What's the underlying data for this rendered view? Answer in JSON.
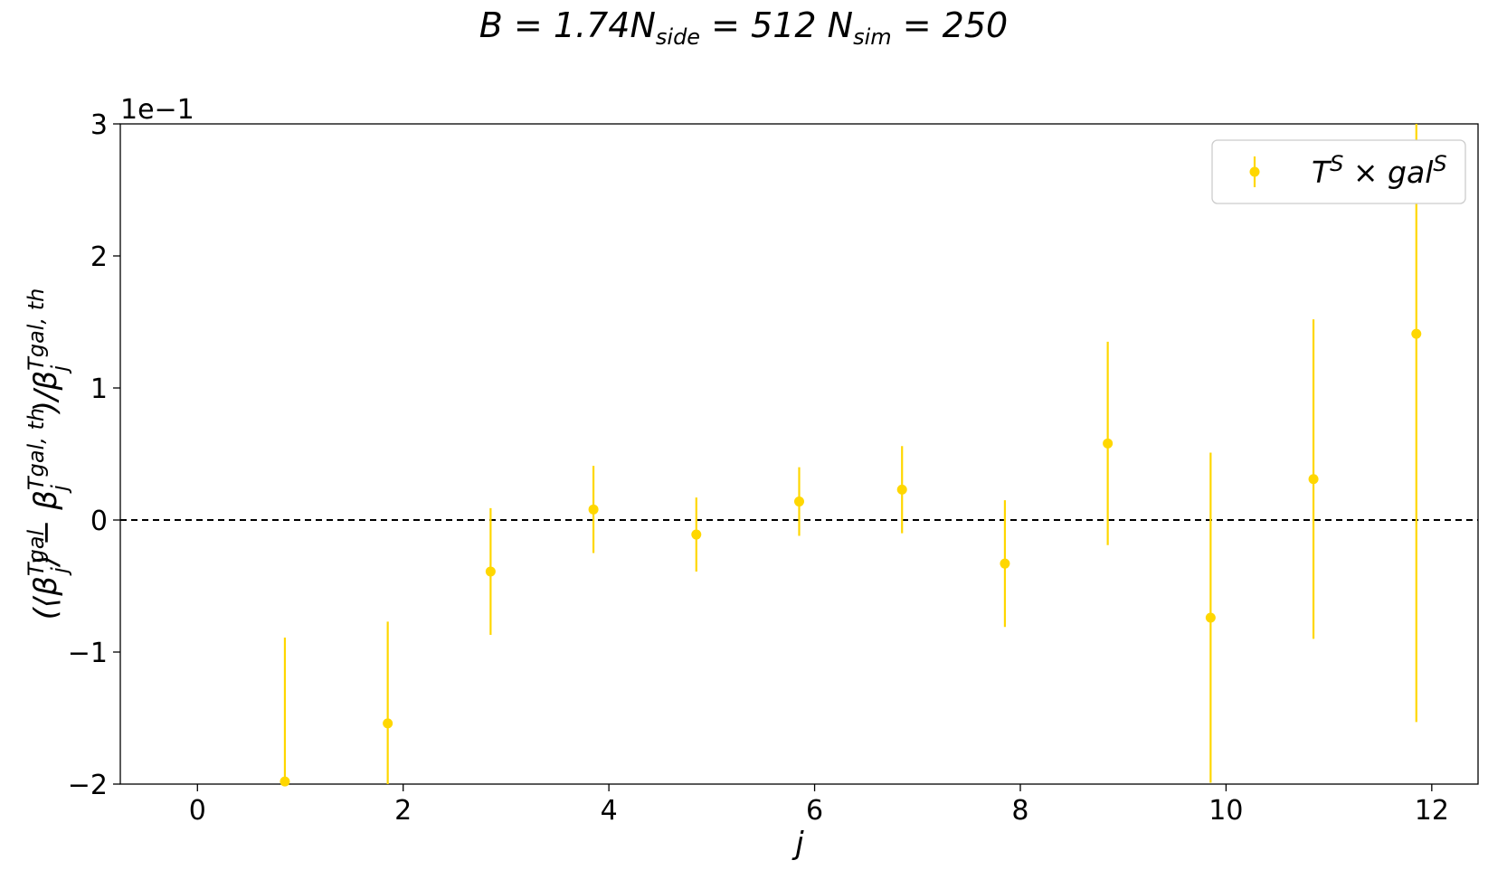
{
  "chart_data": {
    "type": "scatter",
    "title": "B = 1.74N_side = 512 N_sim = 250",
    "xlabel": "j",
    "ylabel": "(⟨β_j^{Tgal}⟩ − β_j^{Tgal, th})/β_j^{Tgal, th}",
    "offset_label": "1e−1",
    "xlim": [
      -0.75,
      12.45
    ],
    "ylim": [
      -2,
      3
    ],
    "x_ticks": [
      0,
      2,
      4,
      6,
      8,
      10,
      12
    ],
    "x_tick_labels": [
      "0",
      "2",
      "4",
      "6",
      "8",
      "10",
      "12"
    ],
    "y_ticks": [
      -2,
      -1,
      0,
      1,
      2,
      3
    ],
    "y_tick_labels": [
      "−2",
      "−1",
      "0",
      "1",
      "2",
      "3"
    ],
    "reference_line": {
      "y": 0,
      "style": "dashed",
      "color": "#000000"
    },
    "grid": false,
    "legend_position": "upper-right",
    "series": [
      {
        "name": "T^S × gal^S",
        "color": "#FFD700",
        "points": [
          {
            "x": 0.85,
            "y": -1.98,
            "yerr": 1.09
          },
          {
            "x": 1.85,
            "y": -1.54,
            "yerr": 0.77
          },
          {
            "x": 2.85,
            "y": -0.39,
            "yerr": 0.48
          },
          {
            "x": 3.85,
            "y": 0.08,
            "yerr": 0.33
          },
          {
            "x": 4.85,
            "y": -0.11,
            "yerr": 0.28
          },
          {
            "x": 5.85,
            "y": 0.14,
            "yerr": 0.26
          },
          {
            "x": 6.85,
            "y": 0.23,
            "yerr": 0.33
          },
          {
            "x": 7.85,
            "y": -0.33,
            "yerr": 0.48
          },
          {
            "x": 8.85,
            "y": 0.58,
            "yerr": 0.77
          },
          {
            "x": 9.85,
            "y": -0.74,
            "yerr": 1.25
          },
          {
            "x": 10.85,
            "y": 0.31,
            "yerr": 1.21
          },
          {
            "x": 11.85,
            "y": 1.41,
            "yerr": 2.94
          }
        ]
      }
    ]
  }
}
